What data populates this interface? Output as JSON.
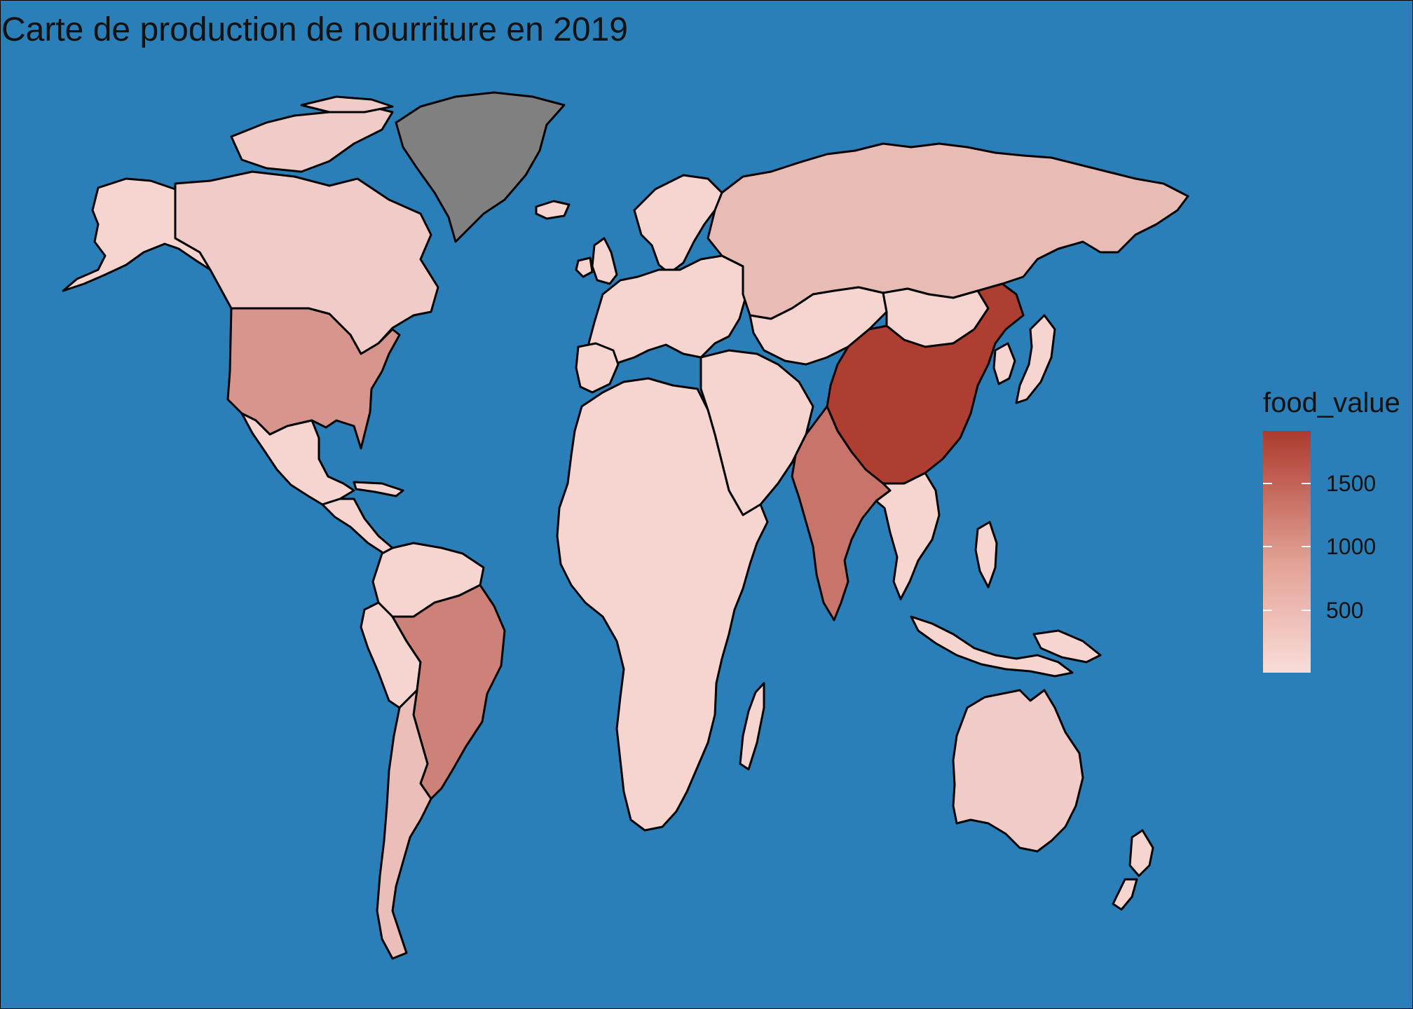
{
  "title": "Carte de production de nourriture en 2019",
  "legend": {
    "title": "food_value",
    "ticks": [
      "500",
      "1000",
      "1500"
    ],
    "low_color": "#F9DCD8",
    "high_color": "#AD3A2E"
  },
  "colors": {
    "ocean": "#2A7FB8",
    "no_data": "#808080",
    "border": "#000000"
  },
  "chart_data": {
    "type": "choropleth",
    "variable": "food_value",
    "year": 2019,
    "color_scale": {
      "min": 0,
      "max": 1950,
      "low": "#F9DCD8",
      "high": "#AD3A2E"
    },
    "approx_values": [
      {
        "region": "China",
        "value": 1900
      },
      {
        "region": "India",
        "value": 1250
      },
      {
        "region": "Brazil",
        "value": 1100
      },
      {
        "region": "United States",
        "value": 850
      },
      {
        "region": "Russia",
        "value": 400
      },
      {
        "region": "Argentina",
        "value": 350
      },
      {
        "region": "Canada",
        "value": 200
      },
      {
        "region": "Australia",
        "value": 200
      },
      {
        "region": "Greenland",
        "value": null
      }
    ]
  }
}
